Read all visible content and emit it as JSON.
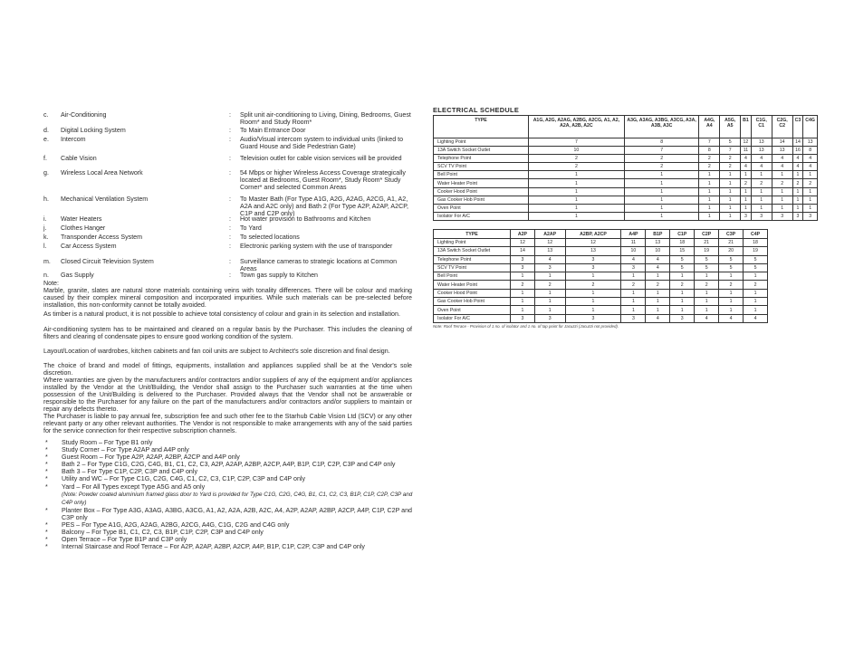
{
  "specs": [
    {
      "letter": "c.",
      "name": "Air-Conditioning",
      "value": "Split unit air-conditioning to Living, Dining, Bedrooms, Guest Room* and Study Room*"
    },
    {
      "letter": "d.",
      "name": "Digital Locking System",
      "value": "To Main Entrance Door"
    },
    {
      "letter": "e.",
      "name": "Intercom",
      "value": "Audio/Visual intercom system to individual units (linked to Guard House and Side Pedestrian Gate)"
    },
    {
      "letter": "f.",
      "name": "Cable Vision",
      "value": "Television outlet for cable vision services will be provided"
    },
    {
      "letter": "g.",
      "name": "Wireless Local Area Network",
      "value": "54 Mbps or higher Wireless Access Coverage strategically located at Bedrooms, Guest Room*, Study Room* Study Corner* and selected Common Areas"
    },
    {
      "letter": "h.",
      "name": "Mechanical Ventilation System",
      "value": "To Master Bath (For Type A1G, A2G, A2AG, A2CG, A1, A2, A2A and A2C only) and Bath 2 (For Type A2P, A2AP, A2CP, C1P and C2P only)"
    },
    {
      "letter": "i.",
      "name": "Water Heaters",
      "value": "Hot water provision to Bathrooms and Kitchen"
    },
    {
      "letter": "j.",
      "name": "Clothes Hanger",
      "value": "To Yard"
    },
    {
      "letter": "k.",
      "name": "Transponder Access System",
      "value": "To selected locations"
    },
    {
      "letter": "l.",
      "name": "Car Access System",
      "value": "Electronic parking system with the use of transponder"
    },
    {
      "letter": "m.",
      "name": "Closed Circuit Television System",
      "value": "Surveillance cameras to strategic locations at Common Areas"
    },
    {
      "letter": "n.",
      "name": "Gas Supply",
      "value": "Town gas supply to Kitchen"
    }
  ],
  "note_label": "Note:",
  "paragraphs": [
    "Marble, granite, slates are natural stone materials containing veins with tonality differences. There will be colour and marking caused by their complex mineral composition and incorporated impurities. While such materials can be pre-selected before installation, this non-conformity cannot be totally avoided.",
    "As timber is a natural product, it is not possible to achieve total consistency of colour and grain in its selection and installation.",
    "Air-conditioning system has to be maintained and cleaned on a regular basis by the Purchaser. This includes the cleaning of filters and clearing of condensate pipes to ensure good working condition of the system.",
    "Layout/Location of wardrobes, kitchen cabinets and fan coil units are subject to Architect's sole discretion and final design.",
    "The choice of brand and model of fittings, equipments, installation and appliances supplied shall be at the Vendor's sole discretion.",
    "Where warranties are given by the manufacturers and/or contractors and/or suppliers of any of the equipment and/or appliances installed by the Vendor at the Unit/Building, the Vendor shall assign to the Purchaser such warranties at the time when possession of the Unit/Building is delivered to the Purchaser. Provided always that the Vendor shall not be answerable or responsible to the Purchaser for any failure on the part of the manufacturers and/or contractors and/or suppliers to maintain or repair any defects thereto.",
    "The Purchaser is liable to pay annual fee, subscription fee and such other fee to the Starhub Cable Vision Ltd (SCV) or any other relevant party or any other relevant authorities. The Vendor is not responsible to make arrangements with any of the said parties for the service connection for their respective subscription channels."
  ],
  "bullets": [
    {
      "text": "Study Room – For Type B1 only"
    },
    {
      "text": "Study Corner – For Type A2AP and A4P only"
    },
    {
      "text": "Guest Room – For Type A2P, A2AP, A2BP, A2CP and A4P only"
    },
    {
      "text": "Bath 2 – For Type C1G, C2G, C4G, B1, C1, C2, C3, A2P, A2AP, A2BP, A2CP, A4P, B1P, C1P, C2P, C3P and C4P only"
    },
    {
      "text": "Bath 3 – For Type C1P, C2P, C3P and C4P only"
    },
    {
      "text": "Utility and WC – For Type C1G, C2G, C4G, C1, C2, C3, C1P, C2P, C3P and C4P only"
    },
    {
      "text": "Yard – For All Types except Type A5G and A5 only",
      "note": "(Note: Powder coated aluminium framed glass door to Yard is provided for Type C1G, C2G, C4G, B1, C1, C2, C3, B1P, C1P, C2P, C3P and C4P only)"
    },
    {
      "text": "Planter Box – For Type A3G, A3AG, A3BG, A3CG, A1, A2, A2A, A2B, A2C, A4, A2P, A2AP, A2BP, A2CP, A4P, C1P, C2P and C3P only"
    },
    {
      "text": "PES – For Type A1G, A2G, A2AG, A2BG, A2CG, A4G, C1G, C2G and C4G only"
    },
    {
      "text": "Balcony – For Type B1, C1, C2, C3, B1P, C1P, C2P, C3P and C4P only"
    },
    {
      "text": "Open Terrace – For Type B1P and C3P only"
    },
    {
      "text": "Internal Staircase and Roof Terrace – For A2P, A2AP, A2BP, A2CP, A4P, B1P, C1P, C2P, C3P and C4P only"
    }
  ],
  "schedule": {
    "title": "ELECTRICAL SCHEDULE",
    "table1": {
      "headers": [
        "TYPE",
        "A1G, A2G, A2AG, A2BG, A2CG, A1, A2, A2A, A2B, A2C",
        "A3G, A3AG, A3BG, A3CG, A3A, A3B, A3C",
        "A4G, A4",
        "A5G, A5",
        "B1",
        "C1G, C1",
        "C2G, C2",
        "C3",
        "C4G"
      ],
      "rows": [
        [
          "Lighting Point",
          "7",
          "8",
          "7",
          "5",
          "12",
          "13",
          "14",
          "14",
          "13"
        ],
        [
          "13A Switch Socket Outlet",
          "10",
          "7",
          "8",
          "7",
          "11",
          "13",
          "13",
          "16",
          "8"
        ],
        [
          "Telephone Point",
          "2",
          "2",
          "2",
          "2",
          "4",
          "4",
          "4",
          "4",
          "4"
        ],
        [
          "SCV TV Point",
          "2",
          "2",
          "2",
          "2",
          "4",
          "4",
          "4",
          "4",
          "4"
        ],
        [
          "Bell Point",
          "1",
          "1",
          "1",
          "1",
          "1",
          "1",
          "1",
          "1",
          "1"
        ],
        [
          "Water Heater Point",
          "1",
          "1",
          "1",
          "1",
          "2",
          "2",
          "2",
          "2",
          "2"
        ],
        [
          "Cooker Hood Point",
          "1",
          "1",
          "1",
          "1",
          "1",
          "1",
          "1",
          "1",
          "1"
        ],
        [
          "Gas Cooker Hob Point",
          "1",
          "1",
          "1",
          "1",
          "1",
          "1",
          "1",
          "1",
          "1"
        ],
        [
          "Oven Point",
          "1",
          "1",
          "1",
          "1",
          "1",
          "1",
          "1",
          "1",
          "1"
        ],
        [
          "Isolator For A/C",
          "1",
          "1",
          "1",
          "1",
          "3",
          "3",
          "3",
          "3",
          "3"
        ]
      ]
    },
    "table2": {
      "headers": [
        "TYPE",
        "A2P",
        "A2AP",
        "A2BP, A2CP",
        "A4P",
        "B1P",
        "C1P",
        "C2P",
        "C3P",
        "C4P"
      ],
      "rows": [
        [
          "Lighting Point",
          "12",
          "12",
          "12",
          "11",
          "13",
          "18",
          "21",
          "21",
          "18"
        ],
        [
          "13A Switch Socket Outlet",
          "14",
          "13",
          "13",
          "10",
          "10",
          "15",
          "19",
          "20",
          "19"
        ],
        [
          "Telephone Point",
          "3",
          "4",
          "3",
          "4",
          "4",
          "5",
          "5",
          "5",
          "5"
        ],
        [
          "SCV TV Point",
          "3",
          "3",
          "3",
          "3",
          "4",
          "5",
          "5",
          "5",
          "5"
        ],
        [
          "Bell Point",
          "1",
          "1",
          "1",
          "1",
          "1",
          "1",
          "1",
          "1",
          "1"
        ],
        [
          "Water Heater Point",
          "2",
          "2",
          "2",
          "2",
          "2",
          "2",
          "2",
          "2",
          "2"
        ],
        [
          "Cooker Hood Point",
          "1",
          "1",
          "1",
          "1",
          "1",
          "1",
          "1",
          "1",
          "1"
        ],
        [
          "Gas Cooker Hob Point",
          "1",
          "1",
          "1",
          "1",
          "1",
          "1",
          "1",
          "1",
          "1"
        ],
        [
          "Oven Point",
          "1",
          "1",
          "1",
          "1",
          "1",
          "1",
          "1",
          "1",
          "1"
        ],
        [
          "Isolator For A/C",
          "3",
          "3",
          "3",
          "3",
          "4",
          "3",
          "4",
          "4",
          "4"
        ]
      ]
    },
    "note": "Note: Roof Terrace - Provision of 1 no. of isolator and 1 no. of tap point for Jacuzzi (Jacuzzi not provided)."
  }
}
